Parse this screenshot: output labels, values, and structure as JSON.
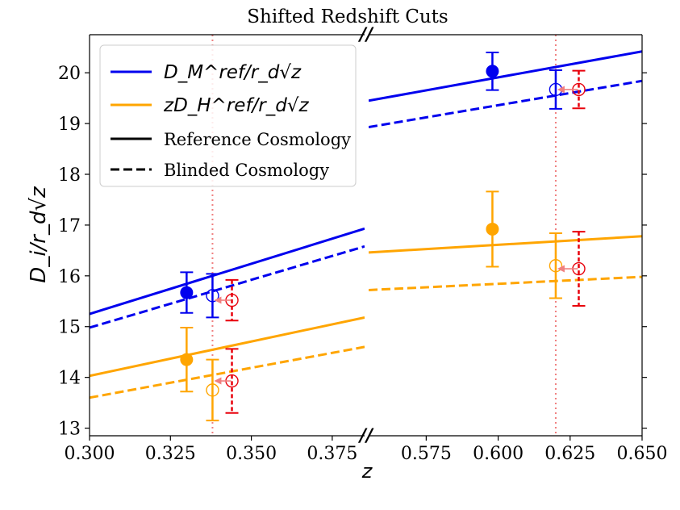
{
  "chart_data": {
    "type": "line",
    "title": "Shifted Redshift Cuts",
    "xlabel": "z",
    "ylabel": "D_i/r_d√z",
    "ylim": [
      12.85,
      20.75
    ],
    "panels": [
      {
        "name": "left",
        "xlim": [
          0.3,
          0.385
        ],
        "ticks": [
          0.3,
          0.325,
          0.35,
          0.375
        ],
        "tick_labels": [
          "0.300",
          "0.325",
          "0.350",
          "0.375"
        ]
      },
      {
        "name": "right",
        "xlim": [
          0.555,
          0.65
        ],
        "ticks": [
          0.575,
          0.6,
          0.625,
          0.65
        ],
        "tick_labels": [
          "0.575",
          "0.600",
          "0.625",
          "0.650"
        ]
      }
    ],
    "yticks": [
      13,
      14,
      15,
      16,
      17,
      18,
      19,
      20
    ],
    "ytick_labels": [
      "13",
      "14",
      "15",
      "16",
      "17",
      "18",
      "19",
      "20"
    ],
    "colors": {
      "dm": "#0000ee",
      "dh": "#ffa500",
      "blinded_point": "#e8000b",
      "shift_arrow": "#f08080",
      "zcut_line": "#f08080"
    },
    "legend": {
      "placement": "top-left",
      "entries": [
        {
          "kind": "dm",
          "label": "D_M^ref/r_d√z"
        },
        {
          "kind": "dh",
          "label": "zD_H^ref/r_d√z"
        },
        {
          "kind": "solid",
          "label": "Reference Cosmology"
        },
        {
          "kind": "dashed",
          "label": "Blinded Cosmology"
        }
      ]
    },
    "axis_break_symbol": "//",
    "series": [
      {
        "name": "D_M reference",
        "quantity": "dm",
        "style": "solid",
        "segments": [
          {
            "x": [
              0.3,
              0.385
            ],
            "y": [
              15.25,
              16.93
            ]
          },
          {
            "x": [
              0.555,
              0.65
            ],
            "y": [
              19.45,
              20.42
            ]
          }
        ]
      },
      {
        "name": "D_M blinded",
        "quantity": "dm",
        "style": "dashed",
        "segments": [
          {
            "x": [
              0.3,
              0.385
            ],
            "y": [
              14.98,
              16.58
            ]
          },
          {
            "x": [
              0.555,
              0.65
            ],
            "y": [
              18.93,
              19.84
            ]
          }
        ]
      },
      {
        "name": "D_H reference",
        "quantity": "dh",
        "style": "solid",
        "segments": [
          {
            "x": [
              0.3,
              0.385
            ],
            "y": [
              14.03,
              15.18
            ]
          },
          {
            "x": [
              0.555,
              0.65
            ],
            "y": [
              16.46,
              16.78
            ]
          }
        ]
      },
      {
        "name": "D_H blinded",
        "quantity": "dh",
        "style": "dashed",
        "segments": [
          {
            "x": [
              0.3,
              0.385
            ],
            "y": [
              13.6,
              14.6
            ]
          },
          {
            "x": [
              0.555,
              0.65
            ],
            "y": [
              15.72,
              15.98
            ]
          }
        ]
      }
    ],
    "z_cuts": [
      0.338,
      0.62
    ],
    "points": [
      {
        "kind": "reference",
        "quantity": "dm",
        "x": 0.33,
        "y": 15.67,
        "err": 0.4
      },
      {
        "kind": "shifted",
        "quantity": "dm",
        "x": 0.338,
        "y": 15.61,
        "err": 0.43
      },
      {
        "kind": "blinded",
        "quantity": "dm",
        "x": 0.344,
        "y": 15.52,
        "err": 0.4,
        "shift_to_x": 0.338
      },
      {
        "kind": "reference",
        "quantity": "dh",
        "x": 0.33,
        "y": 14.35,
        "err": 0.63
      },
      {
        "kind": "shifted",
        "quantity": "dh",
        "x": 0.338,
        "y": 13.75,
        "err": 0.6
      },
      {
        "kind": "blinded",
        "quantity": "dh",
        "x": 0.344,
        "y": 13.93,
        "err": 0.63,
        "shift_to_x": 0.338
      },
      {
        "kind": "reference",
        "quantity": "dm",
        "x": 0.598,
        "y": 20.03,
        "err": 0.37
      },
      {
        "kind": "shifted",
        "quantity": "dm",
        "x": 0.62,
        "y": 19.67,
        "err": 0.38
      },
      {
        "kind": "blinded",
        "quantity": "dm",
        "x": 0.628,
        "y": 19.67,
        "err": 0.37,
        "shift_to_x": 0.62
      },
      {
        "kind": "reference",
        "quantity": "dh",
        "x": 0.598,
        "y": 16.92,
        "err": 0.74
      },
      {
        "kind": "shifted",
        "quantity": "dh",
        "x": 0.62,
        "y": 16.2,
        "err": 0.64
      },
      {
        "kind": "blinded",
        "quantity": "dh",
        "x": 0.628,
        "y": 16.14,
        "err": 0.73,
        "shift_to_x": 0.62
      }
    ]
  }
}
